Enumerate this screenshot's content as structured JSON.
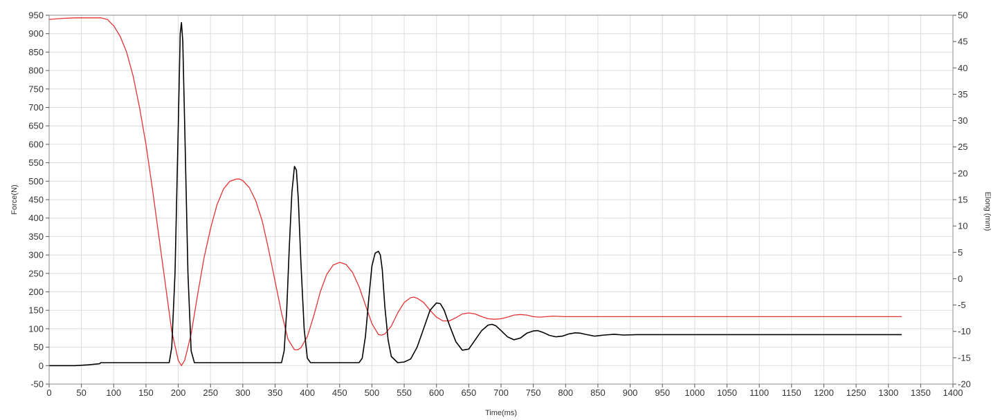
{
  "chart_data": {
    "type": "line",
    "title": "",
    "xlabel": "Time(ms)",
    "ylabel_left": "Force(N)",
    "ylabel_right": "Elong (mm)",
    "xlim": [
      0,
      1400
    ],
    "ylim_left": [
      -50,
      950
    ],
    "ylim_right": [
      -20,
      50
    ],
    "x_ticks": [
      0,
      50,
      100,
      150,
      200,
      250,
      300,
      350,
      400,
      450,
      500,
      550,
      600,
      650,
      700,
      750,
      800,
      850,
      900,
      950,
      1000,
      1050,
      1100,
      1150,
      1200,
      1250,
      1300,
      1350,
      1400
    ],
    "y_left_ticks": [
      -50,
      0,
      50,
      100,
      150,
      200,
      250,
      300,
      350,
      400,
      450,
      500,
      550,
      600,
      650,
      700,
      750,
      800,
      850,
      900,
      950
    ],
    "y_right_ticks": [
      -20,
      -15,
      -10,
      -5,
      0,
      5,
      10,
      15,
      20,
      25,
      30,
      35,
      40,
      45,
      50
    ],
    "grid": true,
    "legend": "none",
    "series": [
      {
        "axis": "left",
        "color": "#000000",
        "x": [
          0,
          20,
          40,
          60,
          78,
          80,
          85,
          100,
          120,
          140,
          160,
          180,
          186,
          190,
          195,
          200,
          203,
          205,
          207,
          210,
          215,
          220,
          225,
          230,
          240,
          250,
          260,
          280,
          300,
          320,
          340,
          360,
          364,
          368,
          372,
          376,
          380,
          383,
          386,
          390,
          395,
          400,
          405,
          410,
          420,
          440,
          460,
          480,
          485,
          490,
          495,
          500,
          505,
          510,
          513,
          516,
          520,
          525,
          530,
          540,
          550,
          560,
          570,
          580,
          590,
          600,
          606,
          612,
          620,
          630,
          640,
          650,
          660,
          670,
          680,
          686,
          692,
          700,
          710,
          720,
          730,
          740,
          750,
          757,
          765,
          775,
          785,
          795,
          805,
          815,
          823,
          830,
          845,
          860,
          875,
          890,
          910,
          950,
          1000,
          1050,
          1100,
          1150,
          1200,
          1250,
          1300,
          1320
        ],
        "y": [
          0,
          0,
          0,
          2,
          5,
          8,
          8,
          8,
          8,
          8,
          8,
          8,
          8,
          50,
          250,
          650,
          900,
          930,
          880,
          650,
          250,
          40,
          8,
          8,
          8,
          8,
          8,
          8,
          8,
          8,
          8,
          8,
          40,
          150,
          320,
          470,
          540,
          530,
          450,
          280,
          100,
          20,
          8,
          8,
          8,
          8,
          8,
          8,
          20,
          80,
          180,
          270,
          305,
          310,
          300,
          260,
          160,
          70,
          25,
          8,
          10,
          18,
          50,
          100,
          150,
          170,
          168,
          150,
          110,
          65,
          42,
          45,
          70,
          95,
          110,
          112,
          108,
          95,
          78,
          70,
          75,
          88,
          94,
          95,
          90,
          82,
          78,
          80,
          86,
          89,
          88,
          85,
          80,
          83,
          85,
          83,
          84,
          84,
          84,
          84,
          84,
          84,
          84,
          84,
          84,
          84
        ]
      },
      {
        "axis": "right",
        "color": "#e23232",
        "x": [
          0,
          20,
          40,
          60,
          80,
          90,
          100,
          110,
          120,
          130,
          140,
          150,
          160,
          170,
          180,
          190,
          200,
          205,
          210,
          220,
          230,
          240,
          250,
          260,
          270,
          280,
          290,
          295,
          300,
          310,
          320,
          330,
          340,
          350,
          360,
          370,
          380,
          385,
          390,
          400,
          410,
          420,
          430,
          440,
          450,
          460,
          470,
          480,
          490,
          500,
          510,
          515,
          520,
          530,
          540,
          550,
          560,
          565,
          570,
          580,
          590,
          600,
          610,
          620,
          630,
          640,
          650,
          660,
          670,
          680,
          690,
          700,
          710,
          720,
          730,
          740,
          750,
          760,
          780,
          800,
          850,
          900,
          1000,
          1100,
          1200,
          1300,
          1320
        ],
        "y": [
          49.2,
          49.4,
          49.5,
          49.5,
          49.5,
          49.2,
          48,
          46,
          43,
          38.5,
          32.5,
          25.5,
          17,
          8,
          -1,
          -10,
          -15.5,
          -16.5,
          -15.5,
          -10.5,
          -3,
          4,
          9.5,
          14,
          17,
          18.5,
          18.9,
          18.9,
          18.6,
          17.3,
          14.8,
          11,
          5.5,
          -0.5,
          -6.5,
          -11.5,
          -13.5,
          -13.5,
          -13.1,
          -11,
          -7,
          -2.5,
          0.8,
          2.6,
          3.1,
          2.7,
          1.2,
          -1.5,
          -5,
          -8.5,
          -10.6,
          -10.7,
          -10.5,
          -9,
          -6.5,
          -4.5,
          -3.6,
          -3.5,
          -3.7,
          -4.5,
          -6,
          -7.3,
          -8,
          -8,
          -7.4,
          -6.7,
          -6.5,
          -6.7,
          -7.2,
          -7.6,
          -7.7,
          -7.6,
          -7.3,
          -6.9,
          -6.8,
          -6.9,
          -7.2,
          -7.3,
          -7.1,
          -7.2,
          -7.2,
          -7.2,
          -7.2,
          -7.2,
          -7.2,
          -7.2,
          -7.2
        ]
      }
    ]
  }
}
